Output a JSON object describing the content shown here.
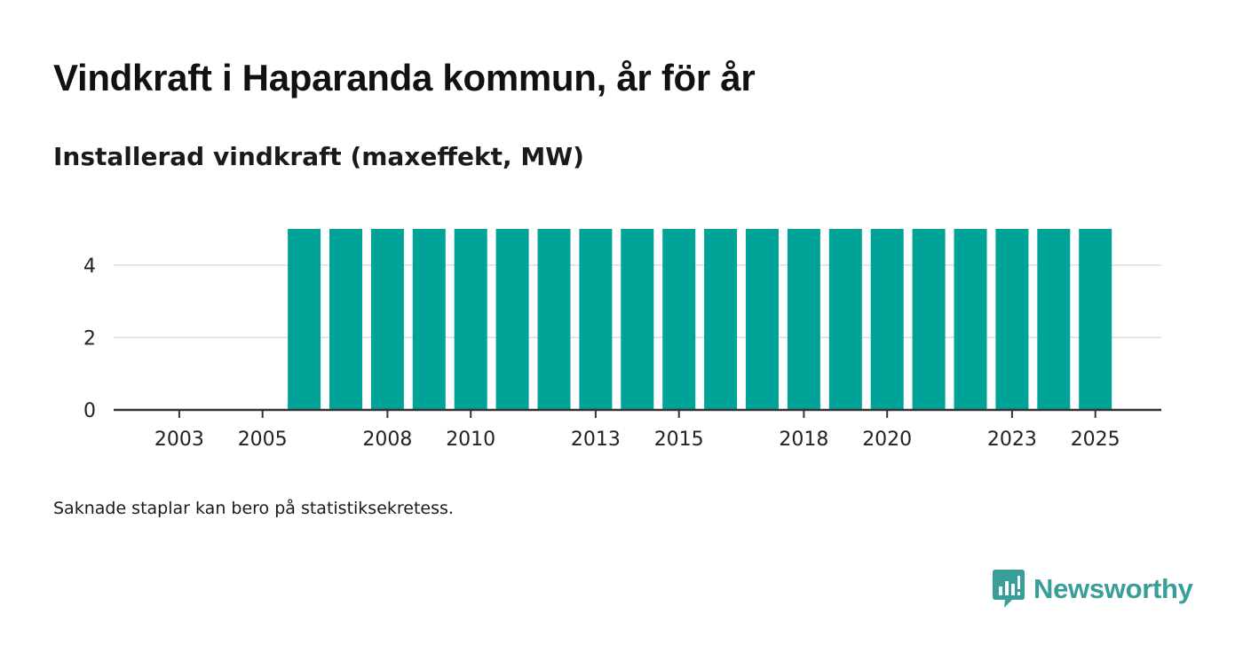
{
  "header": {
    "title": "Vindkraft i Haparanda kommun, år för år",
    "subtitle": "Installerad vindkraft (maxeffekt, MW)"
  },
  "footer": {
    "note": "Saknade staplar kan bero på statistiksekretess."
  },
  "brand": {
    "name": "Newsworthy",
    "icon": "newsworthy-logo-icon",
    "color": "#3a9e98"
  },
  "colors": {
    "bar": "#00a398",
    "grid": "#dddddd",
    "axis": "#333333"
  },
  "chart_data": {
    "type": "bar",
    "title": "Installerad vindkraft (maxeffekt, MW)",
    "xlabel": "",
    "ylabel": "",
    "categories": [
      2002,
      2003,
      2004,
      2005,
      2006,
      2007,
      2008,
      2009,
      2010,
      2011,
      2012,
      2013,
      2014,
      2015,
      2016,
      2017,
      2018,
      2019,
      2020,
      2021,
      2022,
      2023,
      2024,
      2025
    ],
    "values": [
      null,
      null,
      null,
      null,
      5,
      5,
      5,
      5,
      5,
      5,
      5,
      5,
      5,
      5,
      5,
      5,
      5,
      5,
      5,
      5,
      5,
      5,
      5,
      5
    ],
    "ylim": [
      0,
      5
    ],
    "yticks": [
      0,
      2,
      4
    ],
    "xtick_labels": [
      2003,
      2005,
      2008,
      2010,
      2013,
      2015,
      2018,
      2020,
      2023,
      2025
    ],
    "grid": true
  }
}
